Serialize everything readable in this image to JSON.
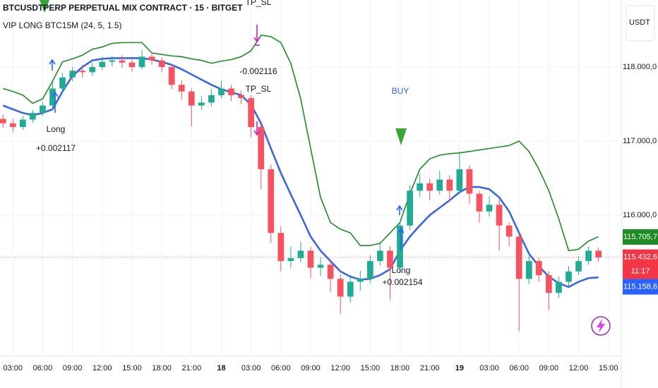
{
  "chart_data": {
    "type": "candlestick",
    "title": "BTCUSDTPERP PERPETUAL MIX CONTRACT · 15 · BITGET",
    "subtitle": "VIP LONG BTC15M (24, 5, 1.5)",
    "currency": "USDT",
    "up_color": "#22ab94",
    "down_color": "#f7525f",
    "grid": true,
    "xlim": [
      -0.3,
      62.3
    ],
    "xticks": [
      {
        "value": 1,
        "label": "03:00"
      },
      {
        "value": 4,
        "label": "06:00"
      },
      {
        "value": 7,
        "label": "09:00"
      },
      {
        "value": 10,
        "label": "12:00"
      },
      {
        "value": 13,
        "label": "15:00"
      },
      {
        "value": 16,
        "label": "18:00"
      },
      {
        "value": 19,
        "label": "21:00"
      },
      {
        "value": 22,
        "label": "18"
      },
      {
        "value": 25,
        "label": "03:00"
      },
      {
        "value": 28,
        "label": "06:00"
      },
      {
        "value": 31,
        "label": "09:00"
      },
      {
        "value": 34,
        "label": "12:00"
      },
      {
        "value": 37,
        "label": "15:00"
      },
      {
        "value": 40,
        "label": "18:00"
      },
      {
        "value": 43,
        "label": "21:00"
      },
      {
        "value": 46,
        "label": "19"
      },
      {
        "value": 49,
        "label": "03:00"
      },
      {
        "value": 52,
        "label": "06:00"
      },
      {
        "value": 55,
        "label": "09:00"
      },
      {
        "value": 58,
        "label": "12:00"
      },
      {
        "value": 61,
        "label": "15:00"
      }
    ],
    "ylim": [
      114190,
      118905
    ],
    "yticks": [
      {
        "value": 116000,
        "label": "116.000,0"
      },
      {
        "value": 117000,
        "label": "117.000,0"
      },
      {
        "value": 118000,
        "label": "118.000,0"
      }
    ],
    "open": [
      117300,
      117240,
      117190,
      117290,
      117380,
      117480,
      117710,
      117860,
      117950,
      117930,
      118000,
      118070,
      118090,
      118060,
      118000,
      118140,
      118090,
      118000,
      117760,
      117670,
      117480,
      117520,
      117620,
      117710,
      117620,
      117580,
      117190,
      116620,
      115760,
      115380,
      115420,
      115520,
      115290,
      115330,
      115140,
      114900,
      115100,
      115140,
      115380,
      115520,
      115290,
      115860,
      116330,
      116430,
      116330,
      116480,
      116330,
      116620,
      116290,
      116050,
      116140,
      115860,
      115710,
      115140,
      115380,
      115190,
      114950,
      115100,
      115240,
      115380,
      115520
    ],
    "high": [
      117360,
      117300,
      117340,
      117420,
      117530,
      117800,
      117920,
      118000,
      118030,
      118060,
      118140,
      118150,
      118160,
      118110,
      118230,
      118200,
      118130,
      118040,
      117820,
      117710,
      117610,
      117700,
      117810,
      117760,
      117680,
      117620,
      117230,
      116680,
      115850,
      115580,
      115640,
      115570,
      115430,
      115390,
      115200,
      115190,
      115250,
      115460,
      115640,
      115580,
      115920,
      116400,
      116560,
      116490,
      116600,
      116540,
      116860,
      116670,
      116330,
      116260,
      116210,
      115900,
      115760,
      115450,
      115420,
      115240,
      115170,
      115310,
      115450,
      115580,
      115560
    ],
    "low": [
      117180,
      117120,
      117150,
      117250,
      117340,
      117450,
      117660,
      117810,
      117860,
      117880,
      117960,
      118010,
      117990,
      117940,
      117970,
      118030,
      117930,
      117700,
      117560,
      117200,
      117420,
      117470,
      117580,
      117540,
      117500,
      117050,
      116350,
      115620,
      115240,
      115290,
      115360,
      115150,
      115180,
      114960,
      114670,
      114820,
      114980,
      115080,
      115320,
      114860,
      115230,
      115800,
      116250,
      116200,
      116280,
      116180,
      116280,
      116150,
      115900,
      115980,
      115520,
      115580,
      114430,
      115070,
      115100,
      114720,
      114880,
      115040,
      115190,
      115330,
      115370
    ],
    "close": [
      117240,
      117190,
      117290,
      117380,
      117480,
      117710,
      117860,
      117950,
      117930,
      118000,
      118070,
      118090,
      118060,
      118000,
      118140,
      118090,
      118000,
      117760,
      117670,
      117480,
      117520,
      117620,
      117710,
      117620,
      117580,
      117190,
      116620,
      115760,
      115380,
      115420,
      115520,
      115290,
      115330,
      115140,
      114900,
      115100,
      115140,
      115380,
      115520,
      115290,
      115860,
      116330,
      116430,
      116330,
      116480,
      116330,
      116620,
      116290,
      116050,
      116140,
      115860,
      115710,
      115140,
      115380,
      115190,
      114950,
      115100,
      115240,
      115380,
      115520,
      115430
    ],
    "overlays": [
      {
        "color": "#1f8b24",
        "values": [
          117710,
          117670,
          117620,
          117510,
          117570,
          117810,
          118070,
          118110,
          118160,
          118240,
          118270,
          118320,
          118330,
          118330,
          118330,
          118190,
          118170,
          118150,
          118140,
          118110,
          118090,
          118050,
          118080,
          118100,
          118140,
          118220,
          118430,
          118410,
          118330,
          118050,
          117570,
          116900,
          116240,
          115900,
          115810,
          115760,
          115590,
          115590,
          115620,
          115760,
          115900,
          116290,
          116620,
          116760,
          116810,
          116830,
          116840,
          116860,
          116880,
          116900,
          116920,
          116940,
          117000,
          116860,
          116620,
          116330,
          115950,
          115520,
          115540,
          115650,
          115710
        ]
      },
      {
        "color": "#3a66e0",
        "values": [
          117480,
          117430,
          117380,
          117350,
          117380,
          117430,
          117670,
          117880,
          118000,
          118090,
          118110,
          118120,
          118120,
          118120,
          118120,
          118100,
          118070,
          118030,
          117970,
          117900,
          117830,
          117760,
          117700,
          117660,
          117620,
          117490,
          117240,
          116900,
          116570,
          116280,
          116000,
          115710,
          115520,
          115380,
          115240,
          115170,
          115130,
          115140,
          115190,
          115270,
          115520,
          115710,
          115860,
          116000,
          116100,
          116200,
          116310,
          116380,
          116380,
          116350,
          116240,
          116050,
          115760,
          115480,
          115310,
          115170,
          115080,
          115030,
          115100,
          115150,
          115160
        ]
      }
    ],
    "annotations": [
      "TP_SL",
      "-0.002116",
      "TP_SL",
      "Long",
      "+0.002117",
      "BUY",
      "Long",
      "+0.002154"
    ],
    "price_labels": [
      {
        "value": 115705.7,
        "label": "115.705,7",
        "color": "#1f8b24"
      },
      {
        "value": 115432.6,
        "label": "115.432,6",
        "color": "#f23645"
      },
      {
        "value": 115158.6,
        "label": "115.158,6",
        "color": "#2962ff"
      }
    ],
    "countdown": "11:17"
  }
}
